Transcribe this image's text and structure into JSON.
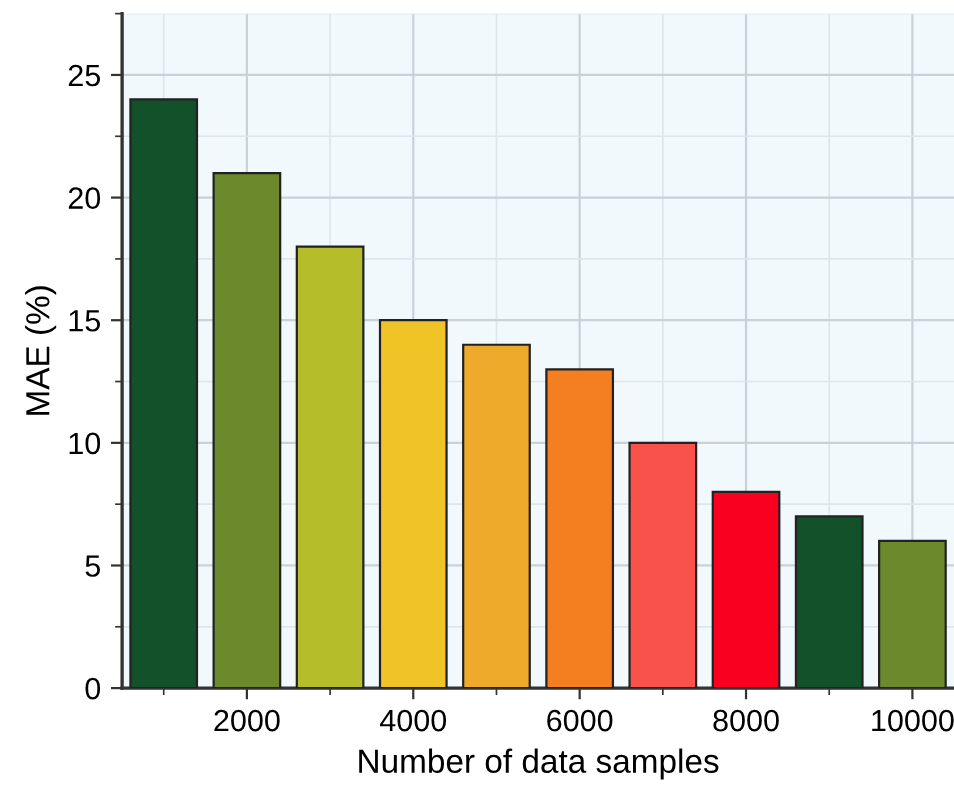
{
  "chart_data": {
    "type": "bar",
    "xlabel": "Number of data samples",
    "ylabel": "MAE (%)",
    "x": [
      1000,
      2000,
      3000,
      4000,
      5000,
      6000,
      7000,
      8000,
      9000,
      10000
    ],
    "values": [
      24,
      21,
      18,
      15,
      14,
      13,
      10,
      8,
      7,
      6
    ],
    "colors": [
      "#12512a",
      "#6c8a2c",
      "#b5bd2a",
      "#f0c427",
      "#eeaa2b",
      "#f47f20",
      "#f9524a",
      "#f90020",
      "#12512a",
      "#6c8a2c"
    ],
    "xlim": [
      500,
      10500
    ],
    "xticks": [
      2000,
      4000,
      6000,
      8000,
      10000
    ],
    "ylim": [
      0,
      27.5
    ],
    "yticks": [
      0,
      5,
      10,
      15,
      20,
      25
    ],
    "grid": true
  }
}
